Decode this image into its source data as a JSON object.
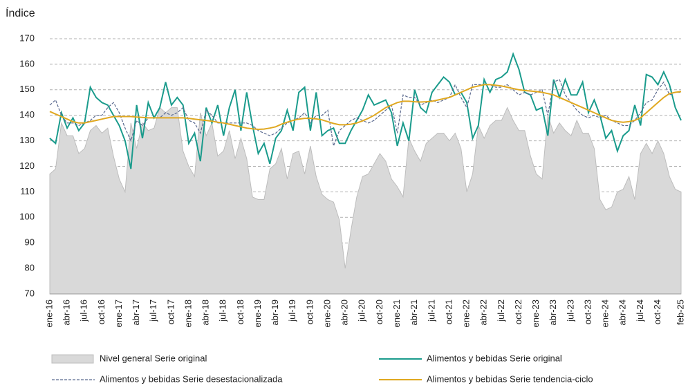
{
  "chart_data": {
    "type": "line",
    "ylabel": "Índice",
    "ylim": [
      70,
      170
    ],
    "yticks": [
      70,
      80,
      90,
      100,
      110,
      120,
      130,
      140,
      150,
      160,
      170
    ],
    "grid": true,
    "categories": [
      "ene-16",
      null,
      null,
      "abr-16",
      null,
      null,
      "jul-16",
      null,
      null,
      "oct-16",
      null,
      null,
      "ene-17",
      null,
      null,
      "abr-17",
      null,
      null,
      "jul-17",
      null,
      null,
      "oct-17",
      null,
      null,
      "ene-18",
      null,
      null,
      "abr-18",
      null,
      null,
      "jul-18",
      null,
      null,
      "oct-18",
      null,
      null,
      "ene-19",
      null,
      null,
      "abr-19",
      null,
      null,
      "jul-19",
      null,
      null,
      "oct-19",
      null,
      null,
      "ene-20",
      null,
      null,
      "abr-20",
      null,
      null,
      "jul-20",
      null,
      null,
      "oct-20",
      null,
      null,
      "ene-21",
      null,
      null,
      "abr-21",
      null,
      null,
      "jul-21",
      null,
      null,
      "oct-21",
      null,
      null,
      "ene-22",
      null,
      null,
      "abr-22",
      null,
      null,
      "jul-22",
      null,
      null,
      "oct-22",
      null,
      null,
      "ene-23",
      null,
      null,
      "abr-23",
      null,
      null,
      "jul-23",
      null,
      null,
      "oct-23",
      null,
      null,
      "ene-24",
      null,
      null,
      "abr-24",
      null,
      null,
      "jul-24",
      null,
      null,
      "oct-24",
      null,
      null,
      null,
      "feb-25"
    ],
    "series": [
      {
        "name": "Nivel general Serie original",
        "color": "#d9d9d9",
        "style": "area",
        "values": [
          117,
          119,
          137,
          132,
          132,
          125,
          127,
          134,
          136,
          133,
          135,
          124,
          115,
          110,
          137,
          127,
          137,
          134,
          135,
          143,
          141,
          143,
          143,
          126,
          120,
          116,
          141,
          132,
          137,
          124,
          126,
          134,
          123,
          131,
          123,
          108,
          107,
          107,
          119,
          121,
          127,
          115,
          125,
          126,
          117,
          128,
          116,
          109,
          107,
          106,
          99,
          80,
          95,
          108,
          116,
          117,
          121,
          125,
          122,
          115,
          112,
          108,
          131,
          126,
          122,
          129,
          131,
          133,
          133,
          130,
          133,
          127,
          110,
          117,
          136,
          131,
          136,
          138,
          138,
          143,
          138,
          134,
          134,
          124,
          117,
          115,
          140,
          133,
          137,
          134,
          132,
          138,
          133,
          133,
          127,
          107,
          103,
          104,
          110,
          111,
          116,
          107,
          125,
          129,
          125,
          130,
          125,
          116,
          111,
          110
        ]
      },
      {
        "name": "Alimentos y bebidas Serie original",
        "color": "#1a9b8c",
        "style": "solid",
        "values": [
          131,
          129,
          141,
          135,
          139,
          134,
          137,
          151,
          147,
          145,
          144,
          140,
          136,
          130,
          119,
          144,
          131,
          145,
          139,
          143,
          153,
          144,
          147,
          144,
          129,
          133,
          122,
          143,
          137,
          144,
          132,
          143,
          150,
          134,
          149,
          136,
          125,
          129,
          121,
          131,
          134,
          142,
          134,
          149,
          151,
          134,
          149,
          132,
          134,
          135,
          129,
          129,
          134,
          138,
          142,
          148,
          144,
          145,
          146,
          141,
          128,
          137,
          130,
          150,
          143,
          141,
          149,
          152,
          155,
          153,
          148,
          149,
          145,
          131,
          136,
          154,
          149,
          154,
          155,
          157,
          164,
          158,
          149,
          148,
          142,
          143,
          132,
          154,
          147,
          154,
          148,
          148,
          153,
          141,
          146,
          140,
          131,
          134,
          126,
          132,
          134,
          144,
          136,
          156,
          155,
          152,
          157,
          152,
          143,
          138
        ]
      },
      {
        "name": "Alimentos y bebidas Serie desestacionalizada",
        "color": "#5b6a8f",
        "style": "dashed",
        "values": [
          144,
          146,
          140,
          137,
          137,
          136,
          137,
          138,
          140,
          140,
          143,
          145,
          141,
          135,
          130,
          138,
          136,
          139,
          139,
          139,
          141,
          140,
          141,
          143,
          138,
          137,
          133,
          142,
          140,
          137,
          137,
          137,
          137,
          137,
          137,
          136,
          134,
          133,
          132,
          133,
          135,
          137,
          138,
          139,
          141,
          137,
          140,
          140,
          142,
          128,
          134,
          136,
          138,
          139,
          138,
          137,
          138,
          140,
          142,
          144,
          133,
          148,
          147,
          147,
          144,
          145,
          146,
          145,
          146,
          147,
          152,
          147,
          143,
          152,
          152,
          152,
          152,
          151,
          151,
          152,
          150,
          148,
          149,
          148,
          149,
          150,
          140,
          153,
          154,
          148,
          145,
          142,
          140,
          139,
          140,
          139,
          140,
          138,
          137,
          136,
          136,
          138,
          141,
          145,
          146,
          150,
          153,
          148,
          149,
          149
        ]
      },
      {
        "name": "Alimentos y bebidas Serie tendencia-ciclo",
        "color": "#e0a820",
        "style": "solid",
        "values": [
          141.5,
          140.5,
          139.5,
          138.5,
          137.5,
          137,
          137,
          137.5,
          138,
          138.5,
          139,
          139.5,
          139.5,
          139.5,
          139.5,
          139.3,
          139.2,
          139,
          139,
          139,
          139,
          139,
          139,
          139,
          138.8,
          138.5,
          138.2,
          138,
          137.7,
          137.3,
          137,
          136.5,
          136,
          135.5,
          135,
          134.7,
          134.5,
          134.6,
          135,
          135.5,
          136.5,
          137.3,
          138,
          138.5,
          138.8,
          138.8,
          138.6,
          138.2,
          137.5,
          136.8,
          136.3,
          136.3,
          136.5,
          137,
          137.8,
          138.8,
          140,
          141.5,
          143,
          144,
          145,
          145.5,
          145.5,
          145.3,
          145.2,
          145.3,
          145.5,
          146,
          146.5,
          147,
          148,
          149,
          150,
          151,
          151.5,
          152,
          152,
          151.8,
          151.5,
          151,
          150.5,
          150,
          149.7,
          149.5,
          149.3,
          149,
          148.5,
          148,
          147,
          146,
          145,
          144,
          143,
          142,
          141,
          140,
          139,
          138,
          137.5,
          137.3,
          137.5,
          138,
          139,
          141,
          143,
          145,
          147,
          148.5,
          149,
          149.3
        ]
      }
    ]
  }
}
